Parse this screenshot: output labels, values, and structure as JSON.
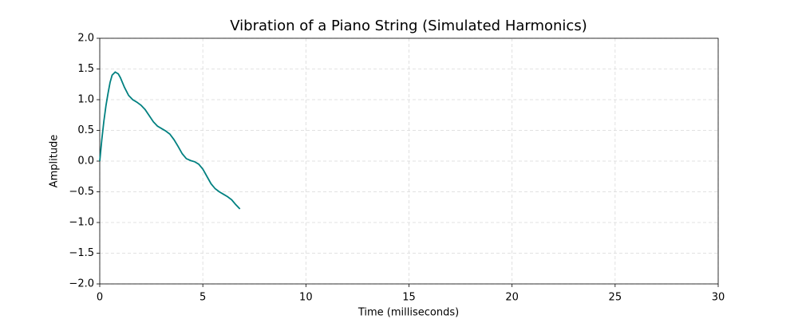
{
  "chart_data": {
    "type": "line",
    "title": "Vibration of a Piano String (Simulated Harmonics)",
    "x_label": "Time (milliseconds)",
    "y_label": "Amplitude",
    "x": [
      0,
      0.1,
      0.2,
      0.3,
      0.4,
      0.5,
      0.6,
      0.75,
      0.9,
      1.0,
      1.2,
      1.4,
      1.6,
      1.8,
      2.0,
      2.2,
      2.4,
      2.6,
      2.8,
      3.0,
      3.2,
      3.4,
      3.6,
      3.8,
      4.0,
      4.2,
      4.4,
      4.6,
      4.8,
      5.0,
      5.2,
      5.4,
      5.6,
      5.8,
      6.0,
      6.2,
      6.4,
      6.6,
      6.8
    ],
    "series": [
      {
        "color": "#008080",
        "values": [
          0,
          0.35,
          0.65,
          0.9,
          1.1,
          1.28,
          1.4,
          1.45,
          1.42,
          1.36,
          1.2,
          1.07,
          1.0,
          0.96,
          0.91,
          0.84,
          0.74,
          0.64,
          0.57,
          0.53,
          0.49,
          0.44,
          0.35,
          0.24,
          0.12,
          0.04,
          0.01,
          -0.01,
          -0.05,
          -0.13,
          -0.25,
          -0.37,
          -0.45,
          -0.5,
          -0.54,
          -0.58,
          -0.63,
          -0.71,
          -0.78
        ]
      }
    ],
    "xlim": [
      0,
      30
    ],
    "xticks": [
      0,
      5,
      10,
      15,
      20,
      25,
      30
    ],
    "ylim": [
      -2,
      2
    ],
    "yticks": [
      {
        "value": -2,
        "label": "−2.0"
      },
      {
        "value": -1.5,
        "label": "−1.5"
      },
      {
        "value": -1,
        "label": "−1.0"
      },
      {
        "value": -0.5,
        "label": "−0.5"
      },
      {
        "value": 0,
        "label": "0.0"
      },
      0.5,
      {
        "value": 1,
        "label": "1.0"
      },
      1.5,
      {
        "value": 2,
        "label": "2.0"
      }
    ],
    "grid": true
  }
}
